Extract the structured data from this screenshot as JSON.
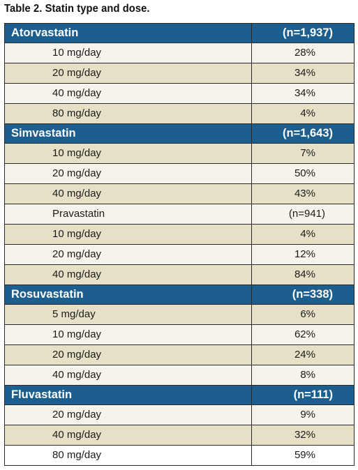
{
  "caption": "Table 2. Statin type and dose.",
  "colors": {
    "header_bg": "#1c5f8f",
    "row_light": "#f6f4ea",
    "row_tan": "#e6e1c6",
    "row_white": "#ffffff"
  },
  "groups": [
    {
      "name": "Atorvastatin",
      "n": "(n=1,937)",
      "rows": [
        {
          "label": "10 mg/day",
          "value": "28%"
        },
        {
          "label": "20 mg/day",
          "value": "34%"
        },
        {
          "label": "40 mg/day",
          "value": "34%"
        },
        {
          "label": "80 mg/day",
          "value": "4%"
        }
      ]
    },
    {
      "name": "Simvastatin",
      "n": "(n=1,643)",
      "rows": [
        {
          "label": "10 mg/day",
          "value": "7%"
        },
        {
          "label": "20 mg/day",
          "value": "50%"
        },
        {
          "label": "40 mg/day",
          "value": "43%"
        },
        {
          "label": "Pravastatin",
          "value": "(n=941)"
        },
        {
          "label": "10 mg/day",
          "value": "4%"
        },
        {
          "label": "20 mg/day",
          "value": "12%"
        },
        {
          "label": "40 mg/day",
          "value": "84%"
        }
      ]
    },
    {
      "name": "Rosuvastatin",
      "n": "(n=338)",
      "rows": [
        {
          "label": "5 mg/day",
          "value": "6%"
        },
        {
          "label": "10 mg/day",
          "value": "62%"
        },
        {
          "label": "20 mg/day",
          "value": "24%"
        },
        {
          "label": "40 mg/day",
          "value": "8%"
        }
      ]
    },
    {
      "name": "Fluvastatin",
      "n": "(n=111)",
      "rows": [
        {
          "label": "20 mg/day",
          "value": "9%"
        },
        {
          "label": "40 mg/day",
          "value": "32%"
        },
        {
          "label": "80 mg/day",
          "value": "59%"
        }
      ]
    }
  ]
}
